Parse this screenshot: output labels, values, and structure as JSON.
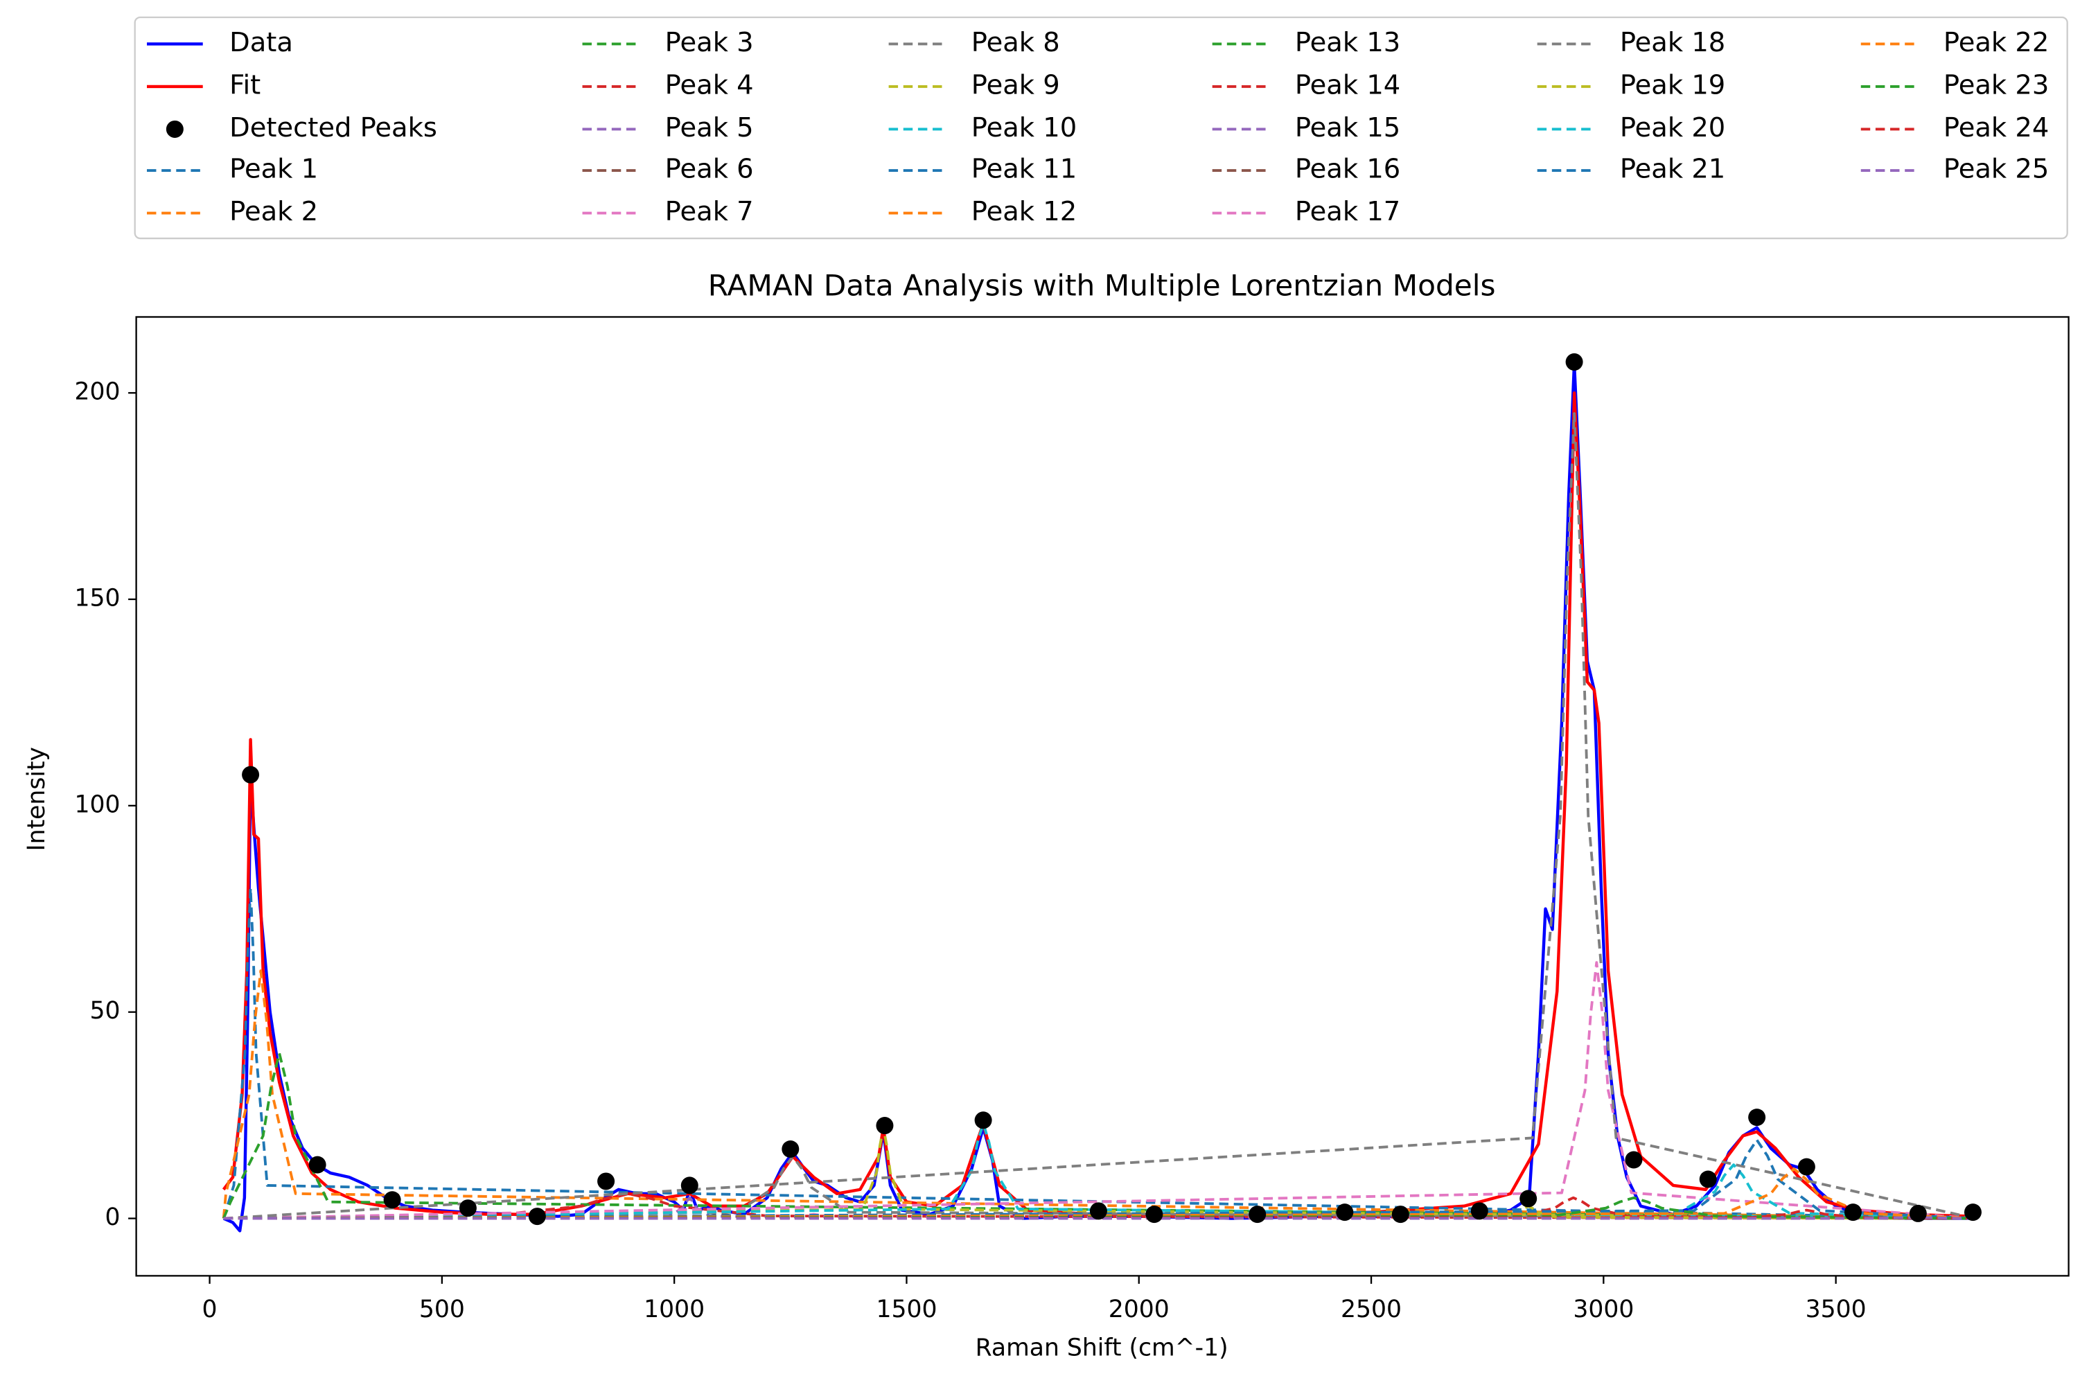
{
  "chart_data": {
    "type": "line",
    "title": "RAMAN Data Analysis with Multiple Lorentzian Models",
    "x_label": "Raman Shift (cm^-1)",
    "y_label": "Intensity",
    "xlim": [
      -158,
      4001
    ],
    "ylim": [
      -13.9,
      218.4
    ],
    "xticks": [
      0,
      500,
      1000,
      1500,
      2000,
      2500,
      3000,
      3500
    ],
    "yticks": [
      0,
      50,
      100,
      150,
      200
    ],
    "grid": false,
    "legend": "top",
    "series": [
      {
        "name": "Data",
        "color": "#0000ff",
        "style": "line",
        "x": [
          30,
          50,
          65,
          75,
          82,
          88,
          95,
          105,
          115,
          130,
          150,
          170,
          200,
          230,
          260,
          300,
          340,
          380,
          420,
          480,
          550,
          650,
          750,
          800,
          850,
          880,
          920,
          960,
          1000,
          1020,
          1033,
          1050,
          1080,
          1100,
          1150,
          1200,
          1230,
          1255,
          1280,
          1300,
          1330,
          1370,
          1400,
          1430,
          1450,
          1465,
          1490,
          1550,
          1600,
          1640,
          1665,
          1685,
          1700,
          1750,
          1850,
          2000,
          2200,
          2400,
          2600,
          2750,
          2800,
          2840,
          2860,
          2875,
          2890,
          2910,
          2925,
          2937,
          2950,
          2965,
          2980,
          2995,
          3010,
          3030,
          3050,
          3080,
          3150,
          3200,
          3240,
          3270,
          3300,
          3330,
          3360,
          3400,
          3430,
          3460,
          3500,
          3550,
          3650,
          3700,
          3800
        ],
        "values": [
          0,
          -1,
          -3,
          5,
          50,
          107,
          95,
          80,
          68,
          50,
          35,
          25,
          17,
          13,
          11,
          10,
          8,
          5,
          3,
          2,
          1.5,
          1,
          0.5,
          1,
          5,
          7,
          6,
          6,
          4,
          2,
          7,
          2,
          3,
          2,
          1,
          5,
          12,
          16,
          12,
          9,
          8,
          5,
          4,
          8,
          21,
          8,
          2,
          1,
          3,
          12,
          22,
          14,
          3,
          0,
          0.5,
          0.5,
          0,
          0.5,
          0.5,
          1,
          2,
          5,
          40,
          75,
          70,
          120,
          175,
          207,
          175,
          135,
          128,
          80,
          40,
          20,
          10,
          3,
          1,
          3,
          8,
          16,
          20,
          22,
          17,
          13,
          12,
          7,
          3,
          1,
          0,
          0,
          0
        ]
      },
      {
        "name": "Fit",
        "color": "#ff0000",
        "style": "line",
        "x": [
          30,
          50,
          70,
          80,
          88,
          95,
          105,
          115,
          130,
          150,
          180,
          220,
          260,
          320,
          400,
          500,
          600,
          700,
          800,
          900,
          980,
          1033,
          1080,
          1150,
          1200,
          1255,
          1300,
          1350,
          1400,
          1440,
          1450,
          1465,
          1500,
          1560,
          1620,
          1665,
          1700,
          1760,
          1900,
          2100,
          2300,
          2500,
          2700,
          2800,
          2860,
          2900,
          2920,
          2937,
          2950,
          2965,
          2980,
          2990,
          3010,
          3040,
          3080,
          3150,
          3220,
          3260,
          3300,
          3330,
          3370,
          3420,
          3480,
          3550,
          3650,
          3800
        ],
        "values": [
          7,
          10,
          30,
          60,
          116,
          93,
          92,
          60,
          45,
          33,
          20,
          11,
          7,
          4,
          2.5,
          1.5,
          1,
          1,
          3,
          6,
          5,
          6,
          3,
          3,
          6,
          15,
          10,
          6,
          7,
          15,
          22,
          10,
          4,
          3,
          8,
          23,
          8,
          2,
          1,
          0.5,
          1,
          1.5,
          3,
          6,
          18,
          55,
          110,
          200,
          170,
          130,
          128,
          120,
          60,
          30,
          15,
          8,
          7,
          14,
          20,
          21,
          17,
          10,
          4,
          2,
          1,
          0.5
        ]
      },
      {
        "name": "Detected Peaks",
        "color": "#000000",
        "style": "marker",
        "x": [
          88,
          232,
          393,
          556,
          705,
          853,
          1033,
          1250,
          1453,
          1665,
          1913,
          2033,
          2255,
          2443,
          2563,
          2733,
          2838,
          2937,
          3065,
          3225,
          3330,
          3437,
          3537,
          3677,
          3795
        ],
        "values": [
          107.5,
          13,
          4.5,
          2.5,
          0.5,
          9,
          8,
          16.8,
          22.5,
          23.8,
          1.8,
          1,
          1,
          1.5,
          1,
          1.8,
          4.8,
          207.5,
          14.2,
          9.5,
          24.5,
          12.5,
          1.5,
          1.2,
          1.5
        ]
      },
      {
        "name": "Peak 1",
        "color": "#1f77b4",
        "style": "dashed",
        "x": [
          30,
          52,
          76,
          82,
          88,
          94,
          100,
          124,
          3800
        ],
        "values": [
          0,
          8,
          40,
          64,
          80,
          64,
          40,
          8,
          0
        ]
      },
      {
        "name": "Peak 2",
        "color": "#ff7f0e",
        "style": "dashed",
        "x": [
          30,
          35,
          85,
          97.5,
          110,
          122.5,
          135,
          185,
          3800
        ],
        "values": [
          0,
          6,
          30,
          48,
          60,
          48,
          30,
          6,
          0
        ]
      },
      {
        "name": "Peak 3",
        "color": "#2ca02c",
        "style": "dashed",
        "x": [
          30,
          45,
          115,
          132.5,
          150,
          167.5,
          185,
          255,
          3800
        ],
        "values": [
          0,
          4,
          20,
          32,
          40,
          32,
          20,
          4,
          0
        ]
      },
      {
        "name": "Peak 4",
        "color": "#d62728",
        "style": "dashed",
        "x": [
          30,
          600,
          800,
          850,
          900,
          950,
          1000,
          1200,
          3800
        ],
        "values": [
          0,
          0.6,
          3,
          4.8,
          6,
          4.8,
          3,
          0.6,
          0
        ]
      },
      {
        "name": "Peak 5",
        "color": "#9467bd",
        "style": "dashed",
        "x": [
          30,
          988,
          1018,
          1025.5,
          1033,
          1040.5,
          1048,
          1078,
          3800
        ],
        "values": [
          0,
          0.5,
          2.5,
          4,
          5,
          4,
          2.5,
          0.5,
          0
        ]
      },
      {
        "name": "Peak 6",
        "color": "#8c564b",
        "style": "dashed",
        "x": [
          30,
          1010,
          1070,
          1085,
          1100,
          1115,
          1130,
          1190,
          3800
        ],
        "values": [
          0,
          0.1,
          0.5,
          0.8,
          1,
          0.8,
          0.5,
          0.1,
          0
        ]
      },
      {
        "name": "Peak 7",
        "color": "#e377c2",
        "style": "dashed",
        "x": [
          30,
          1210,
          1270,
          1285,
          1300,
          1315,
          1330,
          1390,
          3800
        ],
        "values": [
          0,
          0.1,
          0.5,
          0.8,
          1,
          0.8,
          0.5,
          0.1,
          0
        ]
      },
      {
        "name": "Peak 8",
        "color": "#7f7f7f",
        "style": "dashed",
        "x": [
          30,
          1135,
          1215,
          1235,
          1255,
          1275,
          1295,
          1375,
          3800
        ],
        "values": [
          0,
          1.5,
          7.5,
          12,
          15,
          12,
          7.5,
          1.5,
          0
        ]
      },
      {
        "name": "Peak 9",
        "color": "#bcbd22",
        "style": "dashed",
        "x": [
          30,
          1405,
          1435,
          1442.5,
          1450,
          1457.5,
          1465,
          1495,
          3800
        ],
        "values": [
          0,
          2.2,
          11,
          17.6,
          22,
          17.6,
          11,
          2.2,
          0
        ]
      },
      {
        "name": "Peak 10",
        "color": "#17becf",
        "style": "dashed",
        "x": [
          30,
          1590,
          1640,
          1652.5,
          1665,
          1677.5,
          1690,
          1740,
          3800
        ],
        "values": [
          0,
          2.3,
          11.5,
          18.4,
          23,
          18.4,
          11.5,
          2.3,
          0
        ]
      },
      {
        "name": "Peak 11",
        "color": "#1f77b4",
        "style": "dashed",
        "x": [
          30,
          1823,
          1883,
          1898,
          1913,
          1928,
          1943,
          2003,
          3800
        ],
        "values": [
          0,
          0.1,
          0.3,
          0.4,
          0.5,
          0.4,
          0.3,
          0.1,
          0
        ]
      },
      {
        "name": "Peak 12",
        "color": "#ff7f0e",
        "style": "dashed",
        "x": [
          30,
          1943,
          2003,
          2018,
          2033,
          2048,
          2063,
          2123,
          3800
        ],
        "values": [
          0,
          0.1,
          0.3,
          0.4,
          0.5,
          0.4,
          0.3,
          0.1,
          0
        ]
      },
      {
        "name": "Peak 13",
        "color": "#2ca02c",
        "style": "dashed",
        "x": [
          30,
          2165,
          2225,
          2240,
          2255,
          2270,
          2285,
          2345,
          3800
        ],
        "values": [
          0,
          0.1,
          0.3,
          0.4,
          0.5,
          0.4,
          0.3,
          0.1,
          0
        ]
      },
      {
        "name": "Peak 14",
        "color": "#d62728",
        "style": "dashed",
        "x": [
          30,
          2815,
          2895,
          2915,
          2935,
          2955,
          2975,
          3055,
          3800
        ],
        "values": [
          0,
          0.5,
          2.5,
          4,
          5,
          4,
          2.5,
          0.5,
          0
        ]
      },
      {
        "name": "Peak 15",
        "color": "#9467bd",
        "style": "dashed",
        "x": [
          30,
          2473,
          2533,
          2548,
          2563,
          2578,
          2593,
          2653,
          3800
        ],
        "values": [
          0,
          0.1,
          0.3,
          0.4,
          0.5,
          0.4,
          0.3,
          0.1,
          0
        ]
      },
      {
        "name": "Peak 16",
        "color": "#8c564b",
        "style": "dashed",
        "x": [
          30,
          2643,
          2703,
          2718,
          2733,
          2748,
          2763,
          2823,
          3800
        ],
        "values": [
          0,
          0.1,
          0.3,
          0.4,
          0.5,
          0.4,
          0.3,
          0.1,
          0
        ]
      },
      {
        "name": "Peak 17",
        "color": "#e377c2",
        "style": "dashed",
        "x": [
          30,
          2910,
          2960,
          2972.5,
          2985,
          2997.5,
          3010,
          3060,
          3800
        ],
        "values": [
          0,
          6.2,
          31,
          49.6,
          62,
          49.6,
          31,
          6.2,
          0
        ]
      },
      {
        "name": "Peak 18",
        "color": "#7f7f7f",
        "style": "dashed",
        "x": [
          30,
          2847,
          2907,
          2922,
          2937,
          2952,
          2967,
          3027,
          3800
        ],
        "values": [
          0,
          19.5,
          97.5,
          156,
          195,
          156,
          97.5,
          19.5,
          0
        ]
      },
      {
        "name": "Peak 19",
        "color": "#bcbd22",
        "style": "dashed",
        "x": [
          30,
          2778,
          2818,
          2828,
          2838,
          2848,
          2858,
          2898,
          3800
        ],
        "values": [
          0,
          0.3,
          1.5,
          2.4,
          3,
          2.4,
          1.5,
          0.3,
          0
        ]
      },
      {
        "name": "Peak 20",
        "color": "#17becf",
        "style": "dashed",
        "x": [
          30,
          3160,
          3240,
          3260,
          3280,
          3300,
          3320,
          3400,
          3800
        ],
        "values": [
          0,
          1.3,
          6.5,
          10.4,
          13,
          10.4,
          6.5,
          1.3,
          0
        ]
      },
      {
        "name": "Peak 21",
        "color": "#1f77b4",
        "style": "dashed",
        "x": [
          30,
          3195,
          3285,
          3307.5,
          3330,
          3352.5,
          3375,
          3465,
          3800
        ],
        "values": [
          0,
          1.9,
          9.5,
          15.2,
          19,
          15.2,
          9.5,
          1.9,
          0
        ]
      },
      {
        "name": "Peak 22",
        "color": "#ff7f0e",
        "style": "dashed",
        "x": [
          30,
          3260,
          3360,
          3385,
          3410,
          3435,
          3460,
          3560,
          3800
        ],
        "values": [
          0,
          1.2,
          6,
          9.6,
          12,
          9.6,
          6,
          1.2,
          0
        ]
      },
      {
        "name": "Peak 23",
        "color": "#2ca02c",
        "style": "dashed",
        "x": [
          30,
          2885,
          3005,
          3035,
          3065,
          3095,
          3125,
          3245,
          3800
        ],
        "values": [
          0,
          0.5,
          2.5,
          4,
          5,
          4,
          2.5,
          0.5,
          0
        ]
      },
      {
        "name": "Peak 24",
        "color": "#d62728",
        "style": "dashed",
        "x": [
          30,
          3317,
          3397,
          3417,
          3437,
          3457,
          3477,
          3557,
          3800
        ],
        "values": [
          0,
          0.2,
          1,
          1.6,
          2,
          1.6,
          1,
          0.2,
          0
        ]
      },
      {
        "name": "Peak 25",
        "color": "#9467bd",
        "style": "dashed",
        "x": [
          30,
          3587,
          3647,
          3662,
          3677,
          3692,
          3707,
          3767,
          3800
        ],
        "values": [
          0,
          0,
          0.2,
          0.2,
          0.3,
          0.2,
          0.2,
          0,
          0
        ]
      }
    ]
  }
}
